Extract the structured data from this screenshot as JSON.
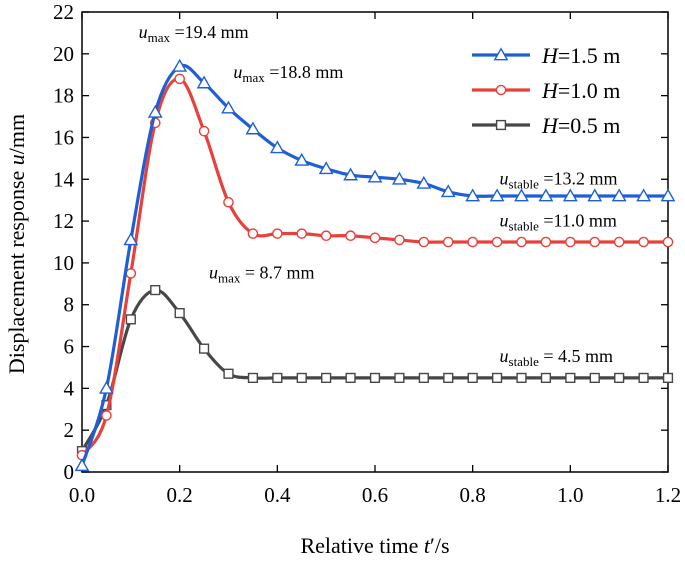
{
  "chart_data": {
    "type": "line",
    "title": "",
    "xlabel": {
      "prefix": "Relative time ",
      "var": "t",
      "suffix": "′/s"
    },
    "ylabel": {
      "prefix": "Displacement response ",
      "var": "u",
      "suffix": "/mm"
    },
    "xlim": [
      0.0,
      1.2
    ],
    "ylim": [
      0,
      22
    ],
    "xticks": [
      {
        "v": 0.0,
        "label": "0.0"
      },
      {
        "v": 0.2,
        "label": "0.2"
      },
      {
        "v": 0.4,
        "label": "0.4"
      },
      {
        "v": 0.6,
        "label": "0.6"
      },
      {
        "v": 0.8,
        "label": "0.8"
      },
      {
        "v": 1.0,
        "label": "1.0"
      },
      {
        "v": 1.2,
        "label": "1.2"
      }
    ],
    "yticks": [
      {
        "v": 0,
        "label": "0"
      },
      {
        "v": 2,
        "label": "2"
      },
      {
        "v": 4,
        "label": "4"
      },
      {
        "v": 6,
        "label": "6"
      },
      {
        "v": 8,
        "label": "8"
      },
      {
        "v": 10,
        "label": "10"
      },
      {
        "v": 12,
        "label": "12"
      },
      {
        "v": 14,
        "label": "14"
      },
      {
        "v": 16,
        "label": "16"
      },
      {
        "v": 18,
        "label": "18"
      },
      {
        "v": 20,
        "label": "20"
      },
      {
        "v": 22,
        "label": "22"
      }
    ],
    "grid": false,
    "legend_position": "top-right",
    "series": [
      {
        "name": "H=1.5 m",
        "legend_var": "H",
        "legend_rest": "=1.5 m",
        "color": "#1f5fd6",
        "marker": "triangle",
        "x": [
          0.0,
          0.05,
          0.1,
          0.15,
          0.2,
          0.25,
          0.3,
          0.35,
          0.4,
          0.45,
          0.5,
          0.55,
          0.6,
          0.65,
          0.7,
          0.75,
          0.8,
          0.85,
          0.9,
          0.95,
          1.0,
          1.05,
          1.1,
          1.15,
          1.2
        ],
        "y": [
          0.3,
          4.0,
          11.1,
          17.2,
          19.4,
          18.6,
          17.4,
          16.4,
          15.5,
          14.9,
          14.5,
          14.2,
          14.1,
          14.0,
          13.8,
          13.4,
          13.2,
          13.2,
          13.2,
          13.2,
          13.2,
          13.2,
          13.2,
          13.2,
          13.2
        ]
      },
      {
        "name": "H=1.0 m",
        "legend_var": "H",
        "legend_rest": "=1.0 m",
        "color": "#e8403a",
        "marker": "circle",
        "x": [
          0.0,
          0.05,
          0.1,
          0.15,
          0.2,
          0.25,
          0.3,
          0.35,
          0.4,
          0.45,
          0.5,
          0.55,
          0.6,
          0.65,
          0.7,
          0.75,
          0.8,
          0.85,
          0.9,
          0.95,
          1.0,
          1.05,
          1.1,
          1.15,
          1.2
        ],
        "y": [
          0.8,
          2.7,
          9.5,
          16.7,
          18.8,
          16.3,
          12.9,
          11.4,
          11.4,
          11.4,
          11.3,
          11.3,
          11.2,
          11.1,
          11.0,
          11.0,
          11.0,
          11.0,
          11.0,
          11.0,
          11.0,
          11.0,
          11.0,
          11.0,
          11.0
        ]
      },
      {
        "name": "H=0.5 m",
        "legend_var": "H",
        "legend_rest": "=0.5 m",
        "color": "#474747",
        "marker": "square",
        "x": [
          0.0,
          0.05,
          0.1,
          0.15,
          0.2,
          0.25,
          0.3,
          0.35,
          0.4,
          0.45,
          0.5,
          0.55,
          0.6,
          0.65,
          0.7,
          0.75,
          0.8,
          0.85,
          0.9,
          0.95,
          1.0,
          1.05,
          1.1,
          1.15,
          1.2
        ],
        "y": [
          1.0,
          3.2,
          7.3,
          8.7,
          7.6,
          5.9,
          4.7,
          4.5,
          4.5,
          4.5,
          4.5,
          4.5,
          4.5,
          4.5,
          4.5,
          4.5,
          4.5,
          4.5,
          4.5,
          4.5,
          4.5,
          4.5,
          4.5,
          4.5,
          4.5
        ]
      }
    ],
    "annotations": [
      {
        "id": "umax-15",
        "var": "u",
        "sub": "max",
        "text": " =19.4 mm",
        "at": [
          0.116,
          20.75
        ]
      },
      {
        "id": "umax-10",
        "var": "u",
        "sub": "max",
        "text": " =18.8 mm",
        "at": [
          0.31,
          18.85
        ]
      },
      {
        "id": "ustable-15",
        "var": "u",
        "sub": "stable",
        "text": " =13.2 mm",
        "at": [
          0.855,
          13.75
        ]
      },
      {
        "id": "ustable-10",
        "var": "u",
        "sub": "stable",
        "text": " =11.0 mm",
        "at": [
          0.855,
          11.75
        ]
      },
      {
        "id": "umax-05",
        "var": "u",
        "sub": "max",
        "text": " = 8.7 mm",
        "at": [
          0.26,
          9.25
        ]
      },
      {
        "id": "ustable-05",
        "var": "u",
        "sub": "stable",
        "text": " = 4.5 mm",
        "at": [
          0.855,
          5.25
        ]
      }
    ]
  }
}
